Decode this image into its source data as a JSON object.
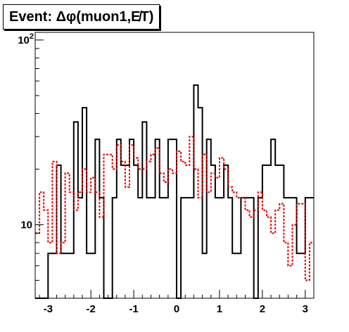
{
  "title": "Event: Δφ(muon1,E̸T)",
  "chart_data": {
    "type": "histogram",
    "title": "Event: Δφ(muon1,E̸T)",
    "xlabel": "",
    "ylabel": "",
    "xlim": [
      -3.3,
      3.2
    ],
    "ylim": [
      4,
      110
    ],
    "y_scale": "log",
    "grid": false,
    "x_ticks": [
      -3,
      -2,
      -1,
      0,
      1,
      2,
      3
    ],
    "x_tick_labels": [
      "-3",
      "-2",
      "-1",
      "0",
      "1",
      "2",
      "3"
    ],
    "y_ticks": [
      10,
      100
    ],
    "y_tick_labels": [
      "10",
      "10^2"
    ],
    "bin_edges": [
      -3.3,
      -3.2,
      -3.1,
      -3.0,
      -2.9,
      -2.8,
      -2.7,
      -2.6,
      -2.5,
      -2.4,
      -2.3,
      -2.2,
      -2.1,
      -2.0,
      -1.9,
      -1.8,
      -1.7,
      -1.6,
      -1.5,
      -1.4,
      -1.3,
      -1.2,
      -1.1,
      -1.0,
      -0.9,
      -0.8,
      -0.7,
      -0.6,
      -0.5,
      -0.4,
      -0.3,
      -0.2,
      -0.1,
      0.0,
      0.1,
      0.2,
      0.3,
      0.4,
      0.5,
      0.6,
      0.7,
      0.8,
      0.9,
      1.0,
      1.1,
      1.2,
      1.3,
      1.4,
      1.5,
      1.6,
      1.7,
      1.8,
      1.9,
      2.0,
      2.1,
      2.2,
      2.3,
      2.4,
      2.5,
      2.6,
      2.7,
      2.8,
      2.9,
      3.0,
      3.1,
      3.2
    ],
    "series": [
      {
        "style": "solid",
        "color": "#000000",
        "values": [
          4,
          4,
          4,
          7,
          7,
          21,
          7,
          7,
          7,
          36,
          14,
          43,
          7,
          7,
          29,
          14,
          4,
          4,
          14,
          29,
          21,
          21,
          29,
          21,
          14,
          36,
          14,
          14,
          29,
          14,
          14,
          29,
          29,
          4,
          14,
          14,
          14,
          57,
          43,
          7,
          29,
          21,
          14,
          14,
          21,
          14,
          7,
          7,
          14,
          14,
          14,
          4,
          14,
          21,
          21,
          29,
          21,
          21,
          14,
          14,
          14,
          7,
          7,
          14,
          14
        ]
      },
      {
        "style": "dashed",
        "color": "#e00000",
        "values": [
          9,
          15,
          12,
          8,
          22,
          7,
          8,
          19,
          15,
          12,
          15,
          20,
          15,
          18,
          15,
          11,
          24,
          24,
          20,
          27,
          22,
          16,
          27,
          23,
          20,
          20,
          22,
          24,
          26,
          19,
          17,
          20,
          19,
          25,
          22,
          21,
          30,
          20,
          14,
          24,
          15,
          19,
          18,
          23,
          20,
          16,
          15,
          14,
          14,
          12,
          11,
          12,
          15,
          12,
          11,
          9,
          12,
          13,
          8,
          6,
          10,
          13,
          13,
          5,
          8
        ]
      }
    ]
  }
}
